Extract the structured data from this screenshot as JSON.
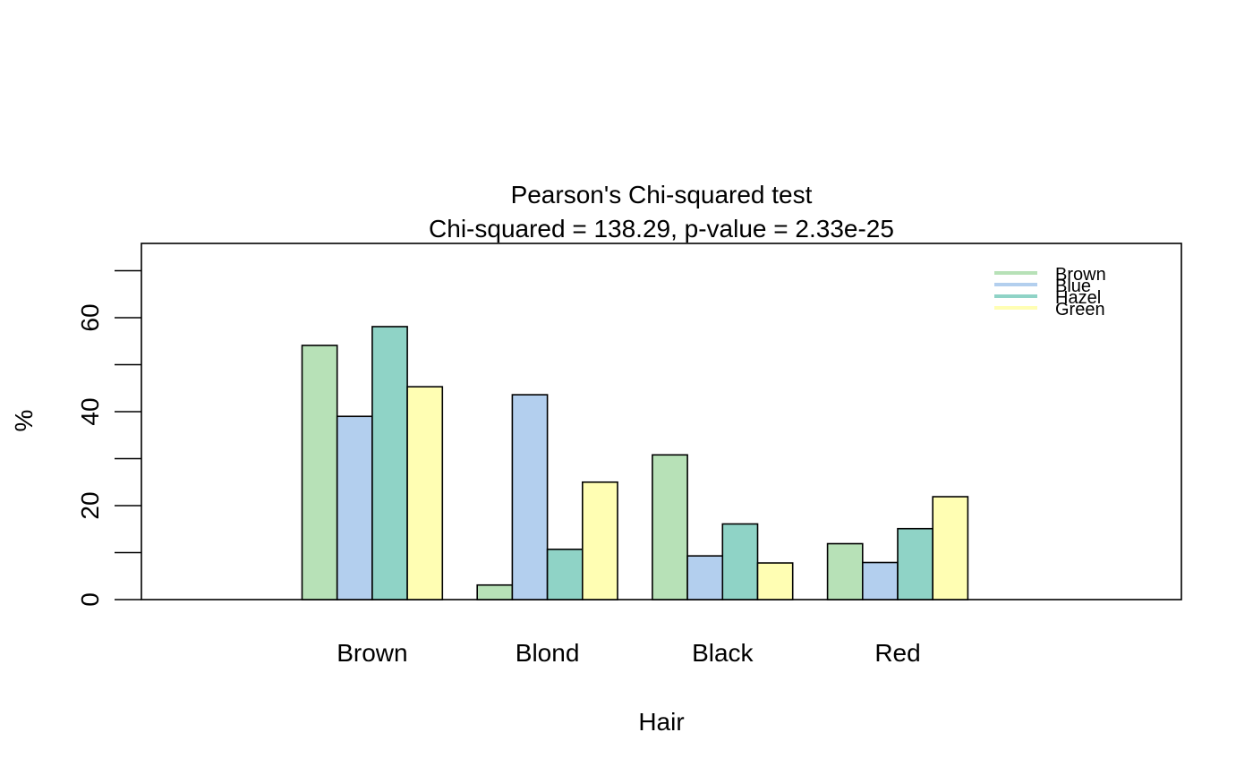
{
  "chart_data": {
    "type": "bar",
    "title": "Pearson's Chi-squared test",
    "subtitle": "Chi-squared = 138.29, p-value = 2.33e-25",
    "xlabel": "Hair",
    "ylabel": "%",
    "categories": [
      "Brown",
      "Blond",
      "Black",
      "Red"
    ],
    "series": [
      {
        "name": "Brown",
        "color": "#b7e1b7",
        "values": [
          54.1,
          3.1,
          30.8,
          11.9
        ]
      },
      {
        "name": "Blue",
        "color": "#b3cfee",
        "values": [
          39.0,
          43.6,
          9.3,
          7.9
        ]
      },
      {
        "name": "Hazel",
        "color": "#8fd3c6",
        "values": [
          58.1,
          10.7,
          16.1,
          15.1
        ]
      },
      {
        "name": "Green",
        "color": "#fffeb3",
        "values": [
          45.3,
          25.0,
          7.8,
          21.9
        ]
      }
    ],
    "yticks": [
      0,
      20,
      40,
      60
    ],
    "ylim": [
      0,
      75
    ],
    "grid": false,
    "legend_position": "top-right"
  }
}
